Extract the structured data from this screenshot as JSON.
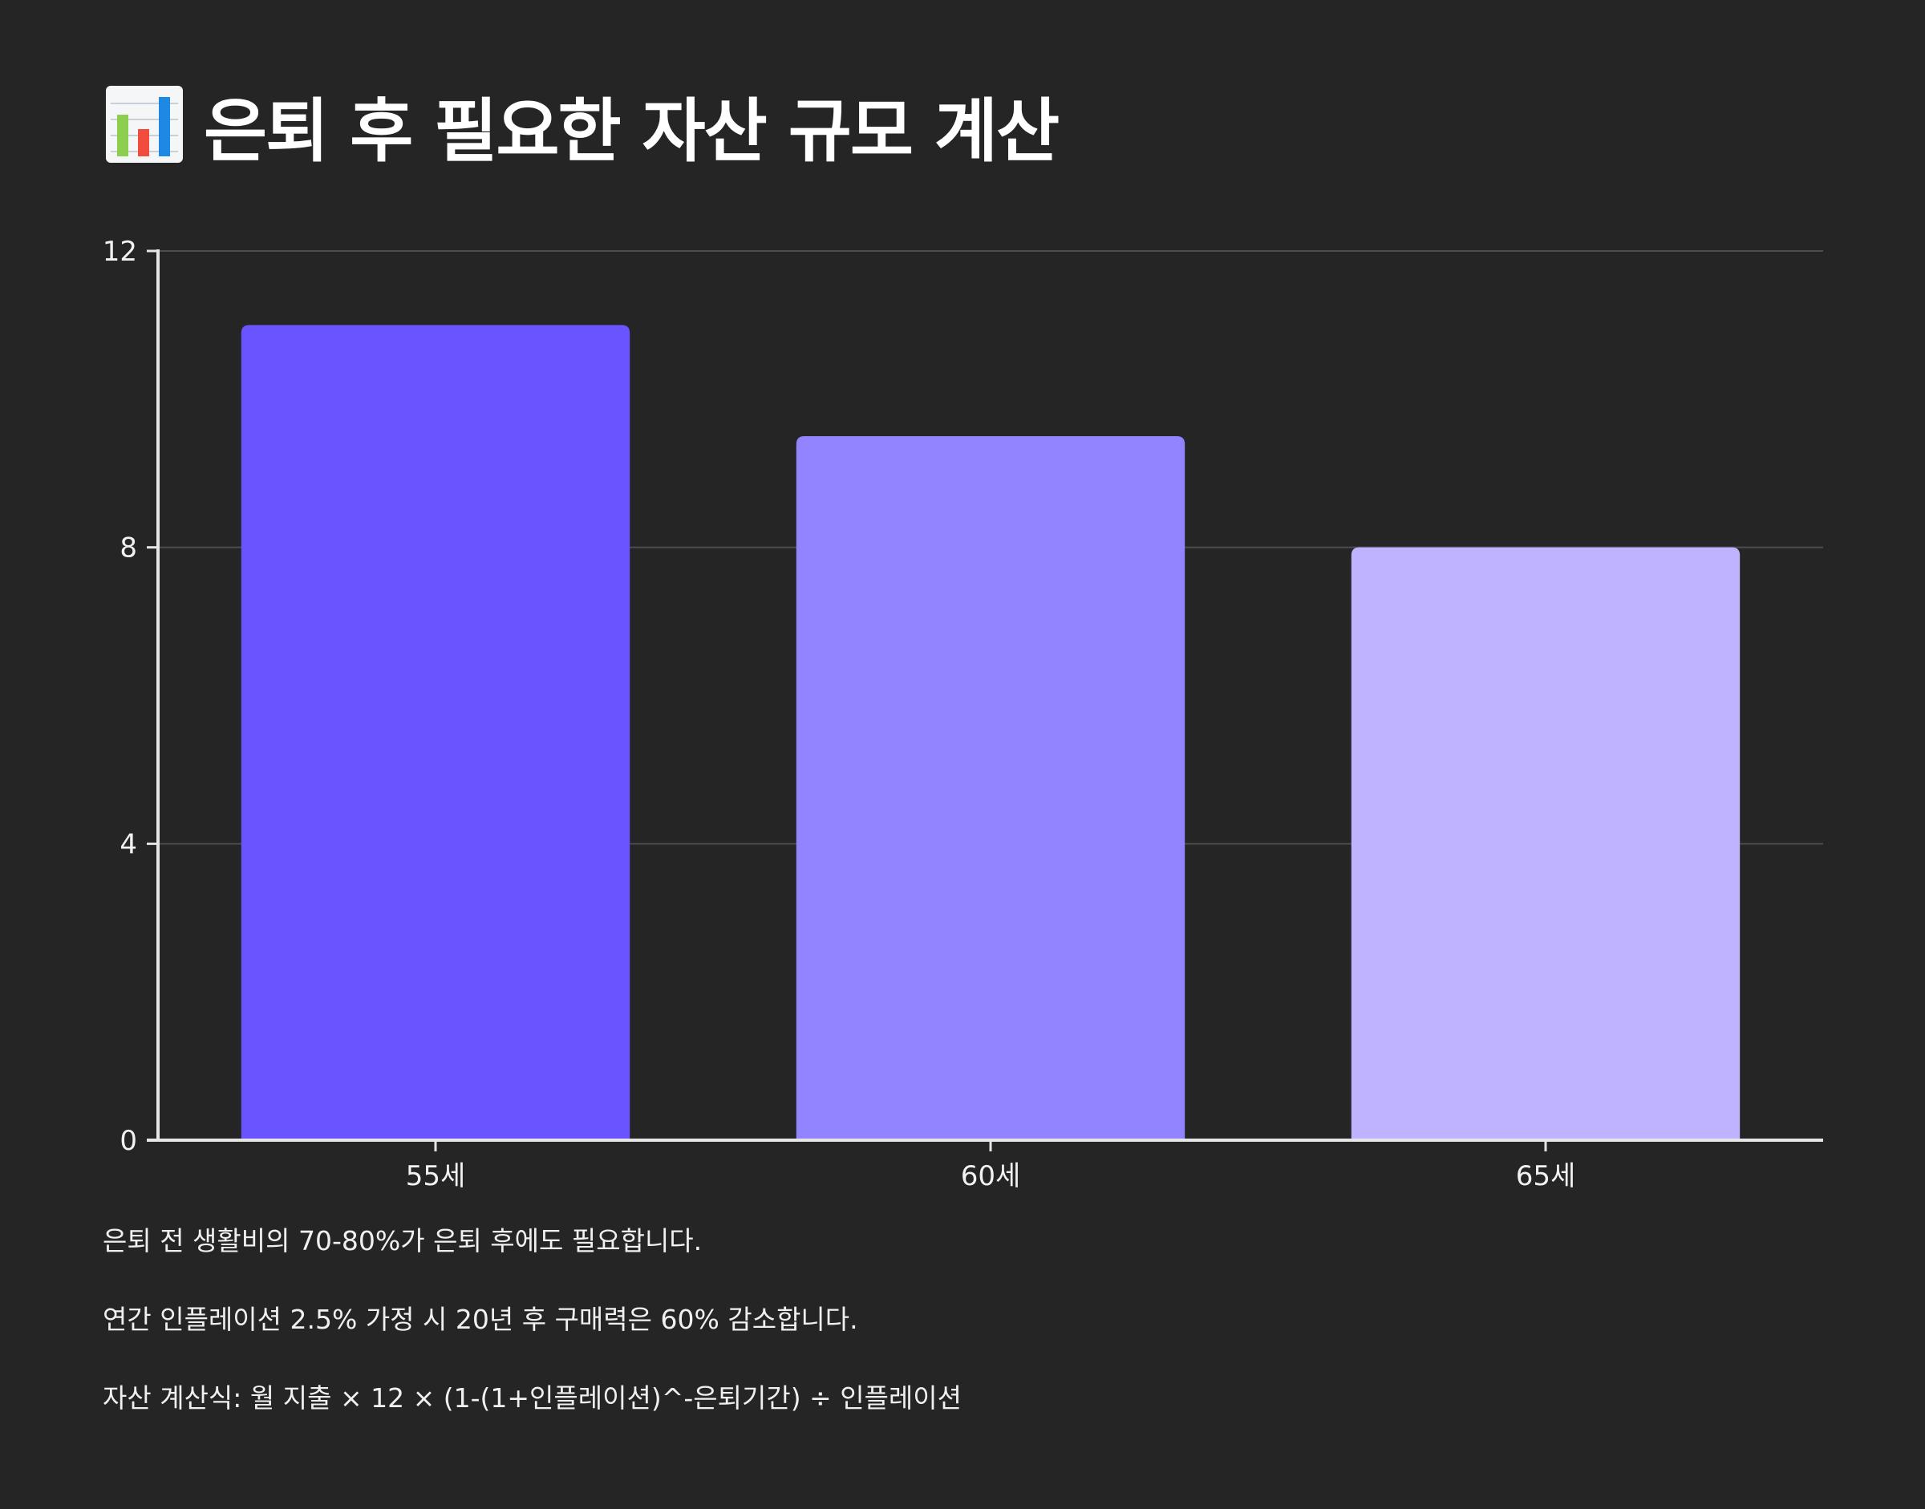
{
  "title": {
    "icon": "bar-chart-icon",
    "text": "은퇴 후 필요한 자산 규모 계산"
  },
  "chart_data": {
    "type": "bar",
    "categories": [
      "55세",
      "60세",
      "65세"
    ],
    "values": [
      11,
      9.5,
      8
    ],
    "ylim": [
      0,
      12
    ],
    "yticks": [
      "0",
      "4",
      "8",
      "12"
    ],
    "grid": true,
    "colors": [
      "#6a54ff",
      "#9284ff",
      "#bfb3ff"
    ]
  },
  "notes": [
    "은퇴 전 생활비의 70-80%가 은퇴 후에도 필요합니다.",
    "연간 인플레이션 2.5% 가정 시 20년 후 구매력은 60% 감소합니다.",
    "자산 계산식: 월 지출 × 12 × (1-(1+인플레이션)^-은퇴기간) ÷ 인플레이션"
  ]
}
